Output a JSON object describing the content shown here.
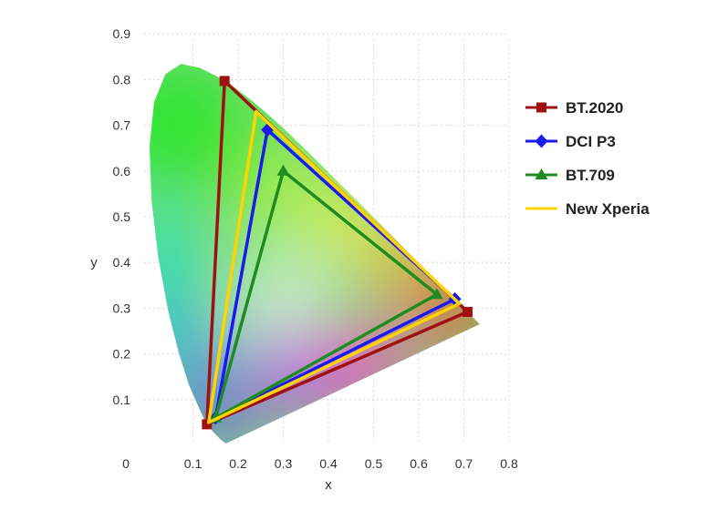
{
  "chart_data": {
    "type": "scatter",
    "title": "",
    "xlabel": "x",
    "ylabel": "y",
    "xlim": [
      0,
      0.8
    ],
    "ylim": [
      0,
      0.9
    ],
    "x_ticks": [
      "0",
      "0.1",
      "0.2",
      "0.3",
      "0.4",
      "0.5",
      "0.6",
      "0.7",
      "0.8"
    ],
    "y_ticks": [
      "0.1",
      "0.2",
      "0.3",
      "0.4",
      "0.5",
      "0.6",
      "0.7",
      "0.8",
      "0.9"
    ],
    "origin_label": "0",
    "grid": true,
    "legend_position": "right",
    "spectral_locus": [
      [
        0.175,
        0.005
      ],
      [
        0.172,
        0.005
      ],
      [
        0.168,
        0.007
      ],
      [
        0.16,
        0.014
      ],
      [
        0.144,
        0.03
      ],
      [
        0.124,
        0.058
      ],
      [
        0.091,
        0.133
      ],
      [
        0.069,
        0.201
      ],
      [
        0.045,
        0.295
      ],
      [
        0.023,
        0.413
      ],
      [
        0.008,
        0.538
      ],
      [
        0.004,
        0.655
      ],
      [
        0.014,
        0.75
      ],
      [
        0.039,
        0.812
      ],
      [
        0.074,
        0.834
      ],
      [
        0.114,
        0.826
      ],
      [
        0.155,
        0.806
      ],
      [
        0.193,
        0.782
      ],
      [
        0.23,
        0.754
      ],
      [
        0.266,
        0.724
      ],
      [
        0.302,
        0.692
      ],
      [
        0.337,
        0.659
      ],
      [
        0.373,
        0.624
      ],
      [
        0.408,
        0.589
      ],
      [
        0.444,
        0.554
      ],
      [
        0.479,
        0.52
      ],
      [
        0.512,
        0.487
      ],
      [
        0.544,
        0.455
      ],
      [
        0.575,
        0.424
      ],
      [
        0.603,
        0.396
      ],
      [
        0.627,
        0.372
      ],
      [
        0.648,
        0.351
      ],
      [
        0.666,
        0.334
      ],
      [
        0.68,
        0.32
      ],
      [
        0.692,
        0.308
      ],
      [
        0.735,
        0.265
      ]
    ],
    "series": [
      {
        "name": "BT.2020",
        "color": "#a01010",
        "marker": "square",
        "points": [
          [
            0.708,
            0.292
          ],
          [
            0.17,
            0.797
          ],
          [
            0.131,
            0.046
          ]
        ]
      },
      {
        "name": "DCI P3",
        "color": "#1a1aee",
        "marker": "diamond",
        "points": [
          [
            0.68,
            0.32
          ],
          [
            0.265,
            0.69
          ],
          [
            0.15,
            0.06
          ]
        ]
      },
      {
        "name": "BT.709",
        "color": "#1e8c1e",
        "marker": "triangle",
        "points": [
          [
            0.64,
            0.33
          ],
          [
            0.3,
            0.6
          ],
          [
            0.15,
            0.06
          ]
        ]
      },
      {
        "name": "New Xperia",
        "color": "#ffd400",
        "marker": "none",
        "points": [
          [
            0.69,
            0.31
          ],
          [
            0.24,
            0.73
          ],
          [
            0.135,
            0.05
          ]
        ]
      }
    ]
  }
}
